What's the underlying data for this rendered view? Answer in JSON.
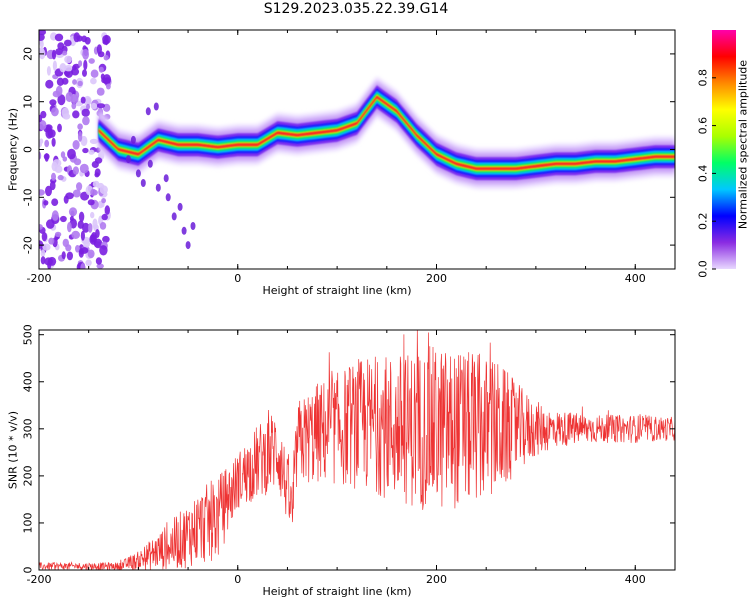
{
  "title": "S129.2023.035.22.39.G14",
  "chart_data": [
    {
      "type": "heatmap",
      "xlabel": "Height of straight line (km)",
      "ylabel": "Frequency (Hz)",
      "xlim": [
        -200,
        440
      ],
      "ylim": [
        -25,
        25
      ],
      "xticks": [
        "-200",
        "0",
        "200",
        "400"
      ],
      "yticks": [
        "-20",
        "-10",
        "0",
        "10",
        "20"
      ],
      "colorbar": {
        "label": "Normalized spectral amplitude",
        "range": [
          0,
          1
        ],
        "ticks": [
          "0.0",
          "0.2",
          "0.4",
          "0.6",
          "0.8"
        ],
        "colors": [
          "#e8d8ff",
          "#8a2be2",
          "#0000ff",
          "#00c8ff",
          "#00ff66",
          "#aaff00",
          "#ffff00",
          "#ff8800",
          "#ff0000",
          "#ff00aa"
        ]
      },
      "ridge": {
        "x": [
          -140,
          -120,
          -100,
          -80,
          -60,
          -40,
          -20,
          0,
          20,
          40,
          60,
          80,
          100,
          120,
          140,
          160,
          180,
          200,
          220,
          240,
          260,
          280,
          300,
          320,
          340,
          360,
          380,
          400,
          420,
          440
        ],
        "freq": [
          4,
          0,
          -1,
          2,
          1,
          1,
          0.5,
          1,
          1,
          3.5,
          3,
          3.5,
          4,
          5.5,
          11,
          8,
          3,
          -1,
          -3,
          -4,
          -4,
          -4,
          -3.5,
          -3,
          -3,
          -2.5,
          -2.5,
          -2,
          -1.5,
          -1.5
        ]
      },
      "noise_band_x": [
        -200,
        -130
      ]
    },
    {
      "type": "line",
      "xlabel": "Height of straight line (km)",
      "ylabel": "SNR (10 * v/v)",
      "xlim": [
        -200,
        440
      ],
      "ylim": [
        0,
        510
      ],
      "xticks": [
        "-200",
        "0",
        "200",
        "400"
      ],
      "yticks": [
        "0",
        "100",
        "200",
        "300",
        "400",
        "500"
      ],
      "color": "#ee3333",
      "envelope": {
        "x": [
          -200,
          -150,
          -120,
          -100,
          -80,
          -60,
          -40,
          -20,
          0,
          20,
          40,
          55,
          60,
          80,
          100,
          120,
          140,
          160,
          180,
          200,
          220,
          240,
          260,
          280,
          300,
          320,
          340,
          360,
          380,
          400,
          440
        ],
        "mean": [
          8,
          8,
          8,
          20,
          40,
          60,
          90,
          110,
          190,
          230,
          260,
          120,
          270,
          290,
          300,
          310,
          310,
          300,
          300,
          300,
          300,
          300,
          300,
          300,
          300,
          300,
          300,
          300,
          300,
          300,
          300
        ],
        "spread": [
          8,
          8,
          8,
          20,
          40,
          60,
          80,
          90,
          60,
          80,
          90,
          60,
          90,
          110,
          120,
          140,
          150,
          160,
          170,
          180,
          170,
          160,
          150,
          100,
          60,
          40,
          35,
          30,
          30,
          30,
          25
        ]
      }
    }
  ]
}
